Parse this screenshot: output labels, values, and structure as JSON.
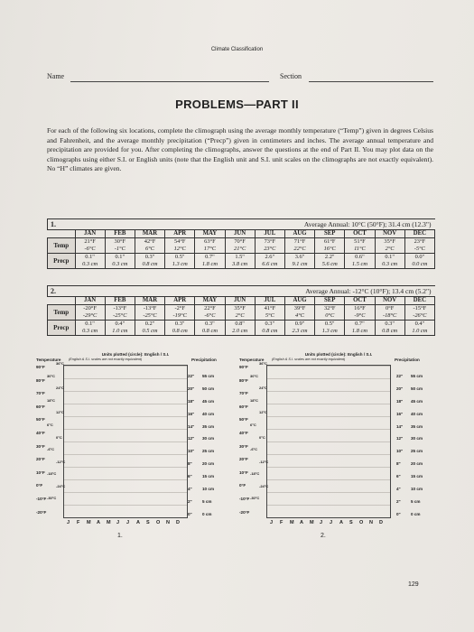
{
  "header": {
    "running_head": "Climate Classification",
    "name_label": "Name",
    "section_label": "Section"
  },
  "title": "PROBLEMS—PART II",
  "instructions": "For each of the following six locations, complete the climograph using the average monthly temperature (“Temp”) given in degrees Celsius and Fahrenheit, and the average monthly precipitation (“Precp”) given in centimeters and inches. The average annual temperature and precipitation are provided for you. After completing the climographs, answer the questions at the end of Part II. You may plot data on the climographs using either S.I. or English units (note that the English unit and S.I. unit scales on the climographs are not exactly equivalent). No “H” climates are given.",
  "months": [
    "JAN",
    "FEB",
    "MAR",
    "APR",
    "MAY",
    "JUN",
    "JUL",
    "AUG",
    "SEP",
    "OCT",
    "NOV",
    "DEC"
  ],
  "row_labels": {
    "temp": "Temp",
    "precip": "Precp"
  },
  "stations": [
    {
      "number": "1.",
      "annual": "Average Annual: 10°C (50°F); 31.4 cm (12.3\")",
      "temp_f": [
        "21°F",
        "30°F",
        "42°F",
        "54°F",
        "63°F",
        "70°F",
        "73°F",
        "71°F",
        "61°F",
        "51°F",
        "35°F",
        "23°F"
      ],
      "temp_c": [
        "-6°C",
        "-1°C",
        "6°C",
        "12°C",
        "17°C",
        "21°C",
        "23°C",
        "22°C",
        "16°C",
        "11°C",
        "2°C",
        "-5°C"
      ],
      "precip_in": [
        "0.1\"",
        "0.1\"",
        "0.3\"",
        "0.5\"",
        "0.7\"",
        "1.5\"",
        "2.6\"",
        "3.6\"",
        "2.2\"",
        "0.6\"",
        "0.1\"",
        "0.0\""
      ],
      "precip_cm": [
        "0.3 cm",
        "0.3 cm",
        "0.8 cm",
        "1.3 cm",
        "1.8 cm",
        "3.8 cm",
        "6.6 cm",
        "9.1 cm",
        "5.6 cm",
        "1.5 cm",
        "0.3 cm",
        "0.0 cm"
      ]
    },
    {
      "number": "2.",
      "annual": "Average Annual: -12°C (10°F); 13.4 cm (5.2\")",
      "temp_f": [
        "-20°F",
        "-13°F",
        "-13°F",
        "-2°F",
        "22°F",
        "35°F",
        "41°F",
        "39°F",
        "32°F",
        "16°F",
        "0°F",
        "-15°F"
      ],
      "temp_c": [
        "-29°C",
        "-25°C",
        "-25°C",
        "-19°C",
        "-6°C",
        "2°C",
        "5°C",
        "4°C",
        "0°C",
        "-9°C",
        "-18°C",
        "-26°C"
      ],
      "precip_in": [
        "0.1\"",
        "0.4\"",
        "0.2\"",
        "0.3\"",
        "0.3\"",
        "0.8\"",
        "0.3\"",
        "0.9\"",
        "0.5\"",
        "0.7\"",
        "0.3\"",
        "0.4\""
      ],
      "precip_cm": [
        "0.3 cm",
        "1.0 cm",
        "0.5 cm",
        "0.8 cm",
        "0.8 cm",
        "2.0 cm",
        "0.8 cm",
        "2.3 cm",
        "1.3 cm",
        "1.8 cm",
        "0.8 cm",
        "1.0 cm"
      ]
    }
  ],
  "climographs": [
    {
      "number": "1.",
      "units_note": "Units plotted (circle): English / S.I.",
      "temp_label": "Temperature",
      "scale_note": "(English & S.I. scales are not exactly equivalent)",
      "precip_label": "Precipitation",
      "f_ticks": [
        "90°F",
        "80°F",
        "70°F",
        "60°F",
        "50°F",
        "40°F",
        "30°F",
        "20°F",
        "10°F",
        "0°F",
        "-10°F",
        "-20°F"
      ],
      "c_ticks": [
        "36°C",
        "30°C",
        "24°C",
        "18°C",
        "12°C",
        "6°C",
        "0°C",
        "-6°C",
        "-12°C",
        "-18°C",
        "-24°C",
        "-30°C"
      ],
      "in_ticks": [
        "22\"",
        "20\"",
        "18\"",
        "16\"",
        "14\"",
        "12\"",
        "10\"",
        "8\"",
        "6\"",
        "4\"",
        "2\"",
        "0\""
      ],
      "cm_ticks": [
        "55 cm",
        "50 cm",
        "45 cm",
        "40 cm",
        "35 cm",
        "30 cm",
        "25 cm",
        "20 cm",
        "15 cm",
        "10 cm",
        "5 cm",
        "0 cm"
      ],
      "month_letters": [
        "J",
        "F",
        "M",
        "A",
        "M",
        "J",
        "J",
        "A",
        "S",
        "O",
        "N",
        "D"
      ]
    },
    {
      "number": "2.",
      "units_note": "Units plotted (circle): English / S.I.",
      "temp_label": "Temperature",
      "scale_note": "(English & S.I. scales are not exactly equivalent)",
      "precip_label": "Precipitation",
      "f_ticks": [
        "90°F",
        "80°F",
        "70°F",
        "60°F",
        "50°F",
        "40°F",
        "30°F",
        "20°F",
        "10°F",
        "0°F",
        "-10°F",
        "-20°F"
      ],
      "c_ticks": [
        "36°C",
        "30°C",
        "24°C",
        "18°C",
        "12°C",
        "6°C",
        "0°C",
        "-6°C",
        "-12°C",
        "-18°C",
        "-24°C",
        "-30°C"
      ],
      "in_ticks": [
        "22\"",
        "20\"",
        "18\"",
        "16\"",
        "14\"",
        "12\"",
        "10\"",
        "8\"",
        "6\"",
        "4\"",
        "2\"",
        "0\""
      ],
      "cm_ticks": [
        "55 cm",
        "50 cm",
        "45 cm",
        "40 cm",
        "35 cm",
        "30 cm",
        "25 cm",
        "20 cm",
        "15 cm",
        "10 cm",
        "5 cm",
        "0 cm"
      ],
      "month_letters": [
        "J",
        "F",
        "M",
        "A",
        "M",
        "J",
        "J",
        "A",
        "S",
        "O",
        "N",
        "D"
      ]
    }
  ],
  "page_number": "129"
}
